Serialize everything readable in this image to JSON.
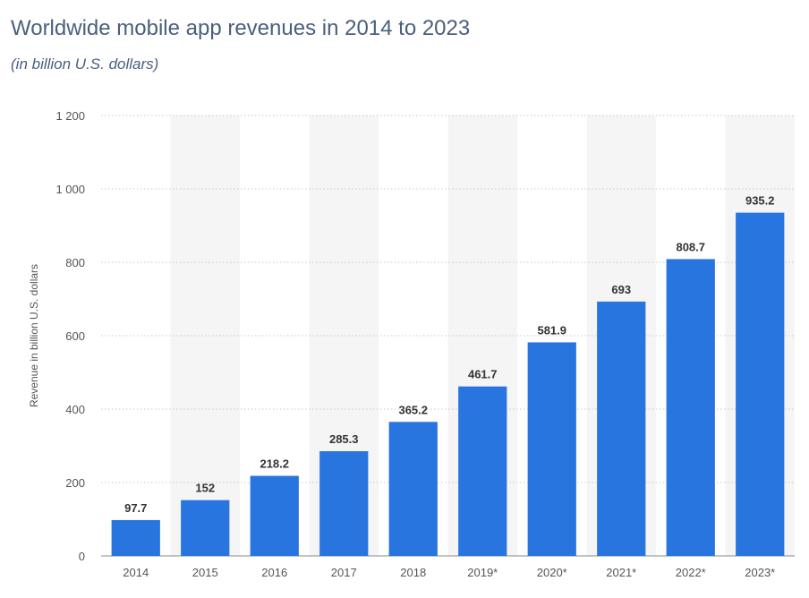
{
  "chart_data": {
    "type": "bar",
    "title": "Worldwide mobile app revenues in 2014 to 2023",
    "subtitle": "(in billion U.S. dollars)",
    "xlabel": "",
    "ylabel": "Revenue in billion U.S. dollars",
    "categories": [
      "2014",
      "2015",
      "2016",
      "2017",
      "2018",
      "2019*",
      "2020*",
      "2021*",
      "2022*",
      "2023*"
    ],
    "values": [
      97.7,
      152,
      218.2,
      285.3,
      365.2,
      461.7,
      581.9,
      693,
      808.7,
      935.2
    ],
    "value_labels": [
      "97.7",
      "152",
      "218.2",
      "285.3",
      "365.2",
      "461.7",
      "581.9",
      "693",
      "808.7",
      "935.2"
    ],
    "ylim": [
      0,
      1200
    ],
    "yticks": [
      0,
      200,
      400,
      600,
      800,
      1000,
      1200
    ],
    "ytick_labels": [
      "0",
      "200",
      "400",
      "600",
      "800",
      "1 000",
      "1 200"
    ],
    "grid": true,
    "legend": "none",
    "colors": {
      "bar": "#2875e0",
      "band": "#f5f5f5",
      "grid": "#c8c8c8",
      "title": "#4a5f7e",
      "axis_text": "#555555",
      "value_text": "#333333"
    }
  }
}
